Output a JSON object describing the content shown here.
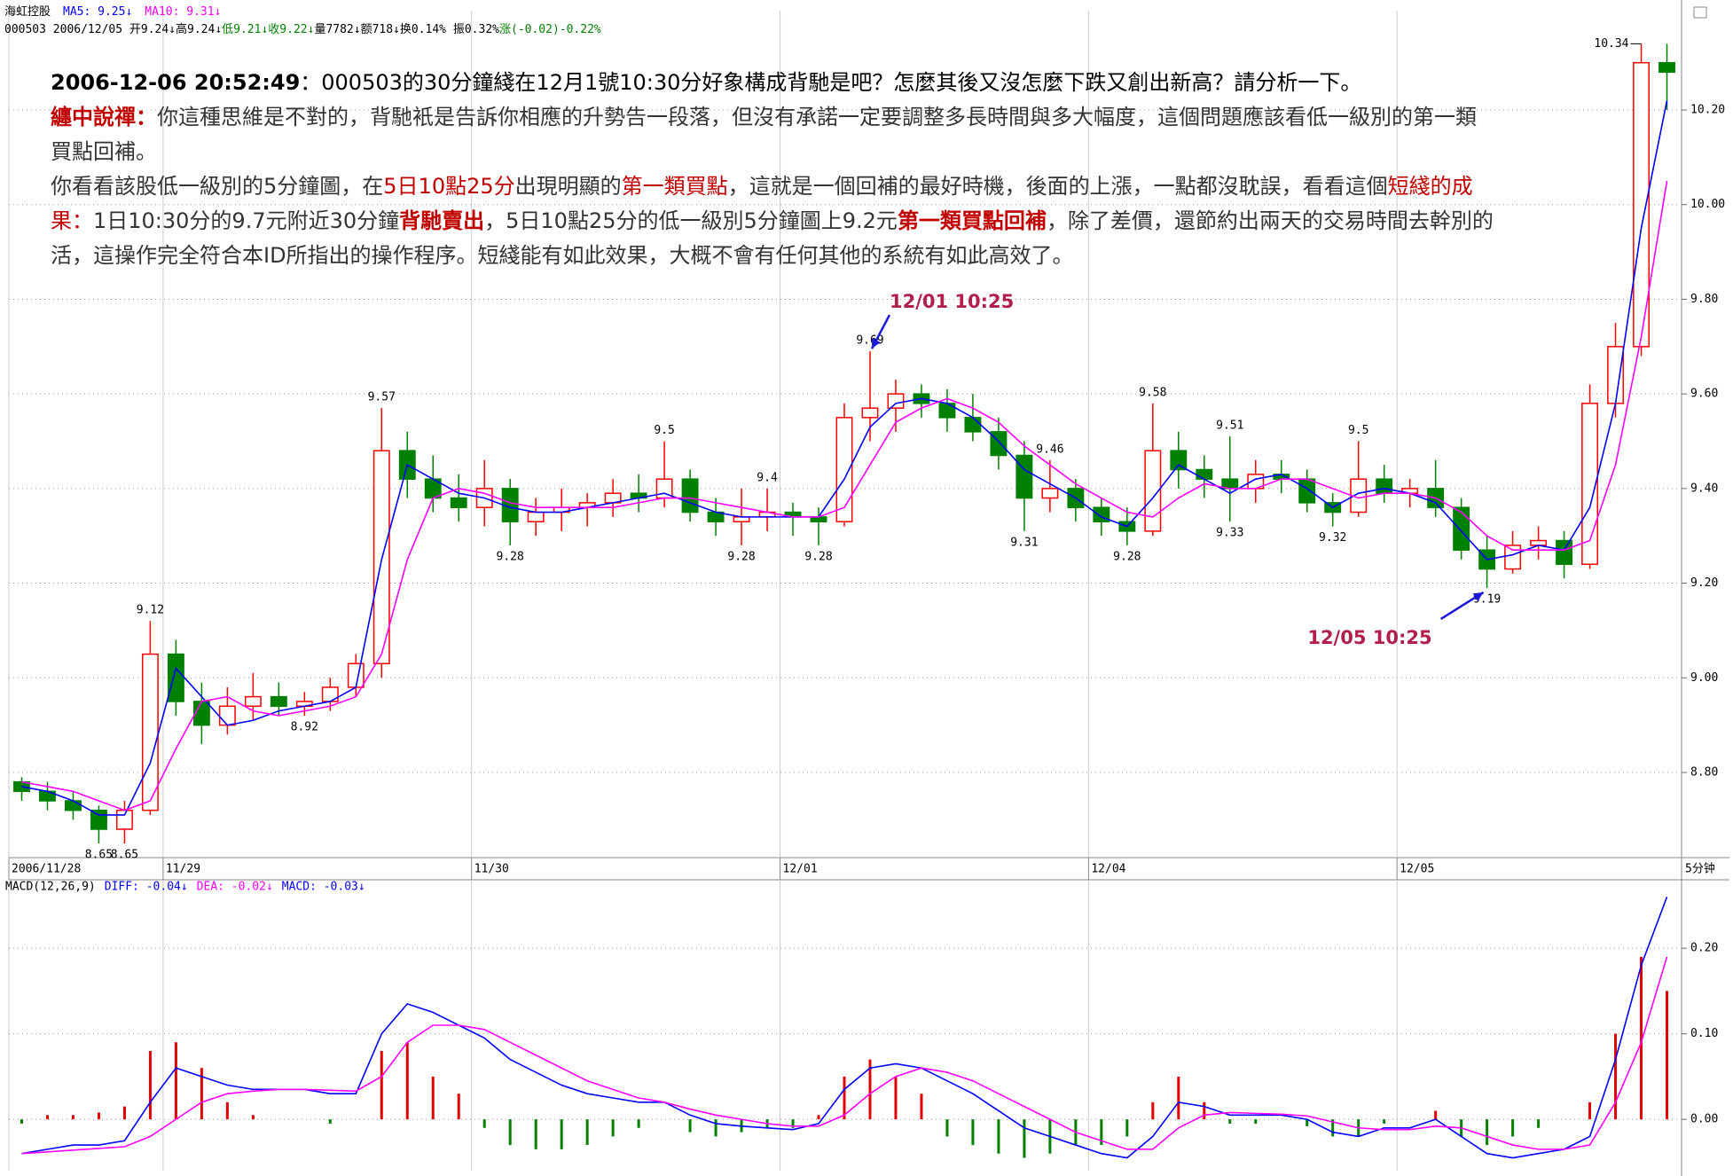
{
  "header": {
    "name": "海虹控股",
    "legend": [
      {
        "text": "MA5: 9.25↓",
        "color": "#0000ff"
      },
      {
        "text": "MA10: 9.31↓",
        "color": "#ff00ff"
      }
    ],
    "quote": [
      {
        "text": "000503 2006/12/05 开9.24↓高9.24↓",
        "color": "#000000"
      },
      {
        "text": "低9.21↓收9.22↓",
        "color": "#008000"
      },
      {
        "text": "量7782↓额718↓换0.14% 振0.32%",
        "color": "#000000"
      },
      {
        "text": "涨(-0.02)-0.22%",
        "color": "#008000"
      }
    ]
  },
  "article": {
    "paragraphs": [
      [
        {
          "text": "2006-12-06 20:52:49",
          "color": "#000000",
          "bold": true
        },
        {
          "text": "：000503的30分鐘綫在12月1號10:30分好象構成背馳是吧？怎麼其後又沒怎麼下跌又創出新高？請分析一下。",
          "color": "#000000",
          "bold": false
        }
      ],
      [
        {
          "text": "纏中說禪：",
          "color": "#c00000",
          "bold": true
        },
        {
          "text": "你這種思維是不對的，背馳衹是告訴你相應的升勢告一段落，但沒有承諾一定要調整多長時間與多大幅度，這個問題應該看低一級別的第一類買點回補。",
          "color": "#333333",
          "bold": false
        }
      ],
      [
        {
          "text": "你看看該股低一級別的5分鐘圖，在",
          "color": "#333333",
          "bold": false
        },
        {
          "text": "5日10點25分",
          "color": "#c00000",
          "bold": false
        },
        {
          "text": "出現明顯的",
          "color": "#333333",
          "bold": false
        },
        {
          "text": "第一類買點",
          "color": "#c00000",
          "bold": false
        },
        {
          "text": "，這就是一個回補的最好時機，後面的上漲，一點都沒耽誤，看看這個",
          "color": "#333333",
          "bold": false
        },
        {
          "text": "短綫的成果：",
          "color": "#c00000",
          "bold": false
        },
        {
          "text": "1日10:30分的9.7元附近30分鐘",
          "color": "#333333",
          "bold": false
        },
        {
          "text": "背馳賣出",
          "color": "#c00000",
          "bold": true
        },
        {
          "text": "，5日10點25分的低一級別5分鐘圖上9.2元",
          "color": "#333333",
          "bold": false
        },
        {
          "text": "第一類買點回補",
          "color": "#c00000",
          "bold": true
        },
        {
          "text": "，除了差價，還節約出兩天的交易時間去幹別的活，這操作完全符合本ID所指出的操作程序。短綫能有如此效果，大概不會有任何其他的系統有如此高效了。",
          "color": "#333333",
          "bold": false
        }
      ]
    ]
  },
  "chart_data": [
    {
      "type": "candlestick",
      "categories": [
        "2006/11/28",
        null,
        null,
        null,
        null,
        null,
        "11/29",
        null,
        null,
        null,
        null,
        null,
        null,
        null,
        null,
        null,
        null,
        null,
        "11/30",
        null,
        null,
        null,
        null,
        null,
        null,
        null,
        null,
        null,
        null,
        null,
        "12/01",
        null,
        null,
        null,
        null,
        null,
        null,
        null,
        null,
        null,
        null,
        null,
        "12/04",
        null,
        null,
        null,
        null,
        null,
        null,
        null,
        null,
        null,
        null,
        null,
        "12/05",
        null,
        null,
        null,
        null,
        null,
        null,
        null,
        null,
        null,
        null
      ],
      "x_unit": "5分钟",
      "candles": {
        "colors": {
          "up": "#ff0000",
          "down": "#008000"
        },
        "open": [
          8.78,
          8.76,
          8.74,
          8.72,
          8.68,
          8.72,
          9.05,
          8.95,
          8.9,
          8.94,
          8.96,
          8.94,
          8.95,
          8.98,
          9.03,
          9.48,
          9.42,
          9.38,
          9.36,
          9.4,
          9.33,
          9.35,
          9.36,
          9.37,
          9.39,
          9.38,
          9.42,
          9.35,
          9.33,
          9.34,
          9.35,
          9.34,
          9.33,
          9.55,
          9.57,
          9.6,
          9.58,
          9.55,
          9.52,
          9.47,
          9.38,
          9.4,
          9.36,
          9.33,
          9.31,
          9.48,
          9.44,
          9.42,
          9.4,
          9.43,
          9.42,
          9.37,
          9.35,
          9.42,
          9.39,
          9.4,
          9.36,
          9.27,
          9.23,
          9.28,
          9.29,
          9.24,
          9.58,
          9.7,
          10.3
        ],
        "high": [
          8.79,
          8.78,
          8.76,
          8.73,
          8.74,
          9.12,
          9.08,
          8.99,
          8.98,
          9.01,
          8.99,
          8.97,
          9.0,
          9.05,
          9.57,
          9.52,
          9.47,
          9.43,
          9.46,
          9.42,
          9.38,
          9.4,
          9.39,
          9.42,
          9.43,
          9.5,
          9.44,
          9.38,
          9.4,
          9.4,
          9.37,
          9.36,
          9.58,
          9.69,
          9.63,
          9.62,
          9.61,
          9.6,
          9.55,
          9.5,
          9.46,
          9.42,
          9.38,
          9.36,
          9.58,
          9.52,
          9.47,
          9.51,
          9.46,
          9.46,
          9.44,
          9.39,
          9.5,
          9.45,
          9.42,
          9.46,
          9.38,
          9.3,
          9.31,
          9.32,
          9.31,
          9.62,
          9.75,
          10.34,
          10.34
        ],
        "low": [
          8.74,
          8.72,
          8.7,
          8.65,
          8.65,
          8.71,
          8.92,
          8.86,
          8.88,
          8.91,
          8.92,
          8.92,
          8.93,
          8.96,
          9.0,
          9.38,
          9.35,
          9.33,
          9.32,
          9.28,
          9.3,
          9.31,
          9.32,
          9.34,
          9.35,
          9.36,
          9.33,
          9.3,
          9.28,
          9.31,
          9.3,
          9.28,
          9.32,
          9.5,
          9.52,
          9.55,
          9.52,
          9.5,
          9.44,
          9.31,
          9.35,
          9.33,
          9.3,
          9.28,
          9.3,
          9.4,
          9.38,
          9.33,
          9.37,
          9.39,
          9.35,
          9.32,
          9.34,
          9.37,
          9.36,
          9.34,
          9.25,
          9.19,
          9.22,
          9.25,
          9.21,
          9.23,
          9.55,
          9.68,
          10.2
        ],
        "close": [
          8.76,
          8.74,
          8.72,
          8.68,
          8.72,
          9.05,
          8.95,
          8.9,
          8.94,
          8.96,
          8.94,
          8.95,
          8.98,
          9.03,
          9.48,
          9.42,
          9.38,
          9.36,
          9.4,
          9.33,
          9.35,
          9.36,
          9.37,
          9.39,
          9.38,
          9.42,
          9.35,
          9.33,
          9.34,
          9.35,
          9.34,
          9.33,
          9.55,
          9.57,
          9.6,
          9.58,
          9.55,
          9.52,
          9.47,
          9.38,
          9.4,
          9.36,
          9.33,
          9.31,
          9.48,
          9.44,
          9.42,
          9.4,
          9.43,
          9.42,
          9.37,
          9.35,
          9.42,
          9.39,
          9.4,
          9.36,
          9.27,
          9.23,
          9.28,
          9.29,
          9.24,
          9.58,
          9.7,
          10.3,
          10.28
        ]
      },
      "lines": [
        {
          "color": "#0000ff",
          "values": [
            8.77,
            8.76,
            8.74,
            8.71,
            8.71,
            8.82,
            9.02,
            8.96,
            8.9,
            8.91,
            8.93,
            8.94,
            8.95,
            8.98,
            9.25,
            9.45,
            9.42,
            9.39,
            9.38,
            9.36,
            9.35,
            9.35,
            9.36,
            9.37,
            9.38,
            9.39,
            9.37,
            9.35,
            9.34,
            9.34,
            9.34,
            9.34,
            9.42,
            9.53,
            9.58,
            9.59,
            9.58,
            9.55,
            9.5,
            9.44,
            9.41,
            9.38,
            9.34,
            9.32,
            9.38,
            9.45,
            9.42,
            9.39,
            9.42,
            9.43,
            9.4,
            9.36,
            9.39,
            9.4,
            9.39,
            9.37,
            9.31,
            9.25,
            9.26,
            9.28,
            9.27,
            9.36,
            9.58,
            9.95,
            10.22
          ]
        },
        {
          "color": "#ff00ff",
          "values": [
            8.78,
            8.77,
            8.76,
            8.74,
            8.72,
            8.74,
            8.85,
            8.95,
            8.96,
            8.93,
            8.92,
            8.93,
            8.94,
            8.96,
            9.05,
            9.25,
            9.38,
            9.4,
            9.39,
            9.37,
            9.36,
            9.36,
            9.36,
            9.36,
            9.37,
            9.38,
            9.38,
            9.37,
            9.36,
            9.35,
            9.34,
            9.34,
            9.36,
            9.45,
            9.54,
            9.57,
            9.59,
            9.57,
            9.54,
            9.49,
            9.45,
            9.41,
            9.38,
            9.35,
            9.34,
            9.38,
            9.41,
            9.4,
            9.4,
            9.42,
            9.42,
            9.4,
            9.38,
            9.39,
            9.39,
            9.38,
            9.35,
            9.3,
            9.27,
            9.27,
            9.27,
            9.29,
            9.45,
            9.72,
            10.05
          ]
        }
      ],
      "ylim": [
        8.62,
        10.41
      ],
      "yticks": [
        {
          "value": 8.8,
          "label": "8.80"
        },
        {
          "value": 9,
          "label": "9.00"
        },
        {
          "value": 9.2,
          "label": "9.20"
        },
        {
          "value": 9.4,
          "label": "9.40"
        },
        {
          "value": 9.6,
          "label": "9.60"
        },
        {
          "value": 9.8,
          "label": "9.80"
        },
        {
          "value": 10,
          "label": "10.00"
        },
        {
          "value": 10.2,
          "label": "10.20"
        }
      ],
      "grid": true,
      "extremes": [
        {
          "index": 3,
          "value": 8.65,
          "position": "below"
        },
        {
          "index": 4,
          "value": 8.65,
          "position": "below"
        },
        {
          "index": 5,
          "value": 9.12,
          "position": "above"
        },
        {
          "index": 11,
          "value": 8.92,
          "position": "below"
        },
        {
          "index": 14,
          "value": 9.57,
          "position": "above"
        },
        {
          "index": 19,
          "value": 9.28,
          "position": "below"
        },
        {
          "index": 25,
          "value": 9.5,
          "position": "above"
        },
        {
          "index": 28,
          "value": 9.28,
          "position": "below"
        },
        {
          "index": 29,
          "value": 9.4,
          "position": "above"
        },
        {
          "index": 31,
          "value": 9.28,
          "position": "below"
        },
        {
          "index": 33,
          "value": 9.69,
          "position": "above"
        },
        {
          "index": 39,
          "value": 9.31,
          "position": "below"
        },
        {
          "index": 40,
          "value": 9.46,
          "position": "above"
        },
        {
          "index": 43,
          "value": 9.28,
          "position": "below"
        },
        {
          "index": 44,
          "value": 9.58,
          "position": "above"
        },
        {
          "index": 47,
          "value": 9.33,
          "position": "below"
        },
        {
          "index": 47,
          "value": 9.51,
          "position": "above"
        },
        {
          "index": 51,
          "value": 9.32,
          "position": "below"
        },
        {
          "index": 52,
          "value": 9.5,
          "position": "above"
        },
        {
          "index": 57,
          "value": 9.19,
          "position": "below"
        },
        {
          "index": 63,
          "value": 10.34,
          "position": "left"
        }
      ],
      "annotations": [
        {
          "text": "12/01 10:25",
          "index": 33,
          "anchor": "high",
          "color": "#b0204a"
        },
        {
          "text": "12/05 10:25",
          "index": 57,
          "anchor": "low",
          "color": "#b0204a"
        }
      ]
    },
    {
      "type": "macd",
      "legend": [
        {
          "text": "MACD(12,26,9)",
          "color": "#000000"
        },
        {
          "text": "DIFF: -0.04↓",
          "color": "#0000ff"
        },
        {
          "text": "DEA: -0.02↓",
          "color": "#ff00ff"
        },
        {
          "text": "MACD: -0.03↓",
          "color": "#0000ff"
        }
      ],
      "histogram": {
        "colors": {
          "up": "#e00000",
          "down": "#008000"
        },
        "values": [
          -0.005,
          0.005,
          0.005,
          0.008,
          0.015,
          0.08,
          0.09,
          0.06,
          0.02,
          0.005,
          0.0,
          0.0,
          -0.005,
          0.0,
          0.08,
          0.09,
          0.05,
          0.03,
          -0.01,
          -0.03,
          -0.035,
          -0.035,
          -0.03,
          -0.02,
          -0.01,
          0.0,
          -0.015,
          -0.02,
          -0.015,
          -0.01,
          -0.01,
          0.005,
          0.05,
          0.07,
          0.05,
          0.03,
          -0.02,
          -0.03,
          -0.04,
          -0.045,
          -0.04,
          -0.03,
          -0.03,
          -0.02,
          0.02,
          0.05,
          0.02,
          -0.005,
          -0.005,
          0.0,
          -0.008,
          -0.02,
          -0.02,
          -0.005,
          0.0,
          0.01,
          -0.02,
          -0.03,
          -0.02,
          -0.01,
          0.0,
          0.02,
          0.1,
          0.19,
          0.15
        ]
      },
      "lines": [
        {
          "color": "#0000ff",
          "values": [
            -0.04,
            -0.035,
            -0.03,
            -0.03,
            -0.025,
            0.02,
            0.06,
            0.05,
            0.04,
            0.035,
            0.035,
            0.035,
            0.03,
            0.03,
            0.1,
            0.135,
            0.125,
            0.11,
            0.095,
            0.07,
            0.055,
            0.04,
            0.03,
            0.025,
            0.02,
            0.02,
            0.005,
            -0.005,
            -0.008,
            -0.01,
            -0.012,
            -0.005,
            0.035,
            0.06,
            0.065,
            0.06,
            0.045,
            0.03,
            0.01,
            -0.01,
            -0.02,
            -0.03,
            -0.04,
            -0.045,
            -0.02,
            0.02,
            0.015,
            0.005,
            0.005,
            0.005,
            0.0,
            -0.015,
            -0.02,
            -0.01,
            -0.01,
            0.0,
            -0.02,
            -0.04,
            -0.045,
            -0.04,
            -0.035,
            -0.02,
            0.07,
            0.18,
            0.26
          ]
        },
        {
          "color": "#ff00ff",
          "values": [
            -0.04,
            -0.038,
            -0.036,
            -0.034,
            -0.032,
            -0.02,
            0.0,
            0.02,
            0.03,
            0.033,
            0.035,
            0.035,
            0.034,
            0.033,
            0.05,
            0.09,
            0.11,
            0.11,
            0.105,
            0.09,
            0.075,
            0.06,
            0.045,
            0.035,
            0.025,
            0.02,
            0.012,
            0.005,
            0.0,
            -0.005,
            -0.008,
            -0.008,
            0.005,
            0.03,
            0.05,
            0.06,
            0.055,
            0.045,
            0.03,
            0.015,
            0.0,
            -0.015,
            -0.025,
            -0.035,
            -0.035,
            -0.01,
            0.005,
            0.008,
            0.007,
            0.006,
            0.004,
            -0.003,
            -0.01,
            -0.012,
            -0.012,
            -0.008,
            -0.01,
            -0.02,
            -0.03,
            -0.035,
            -0.035,
            -0.03,
            0.02,
            0.09,
            0.19
          ]
        }
      ],
      "ylim": [
        -0.06,
        0.28
      ],
      "yticks": [
        {
          "value": 0,
          "label": "0.00"
        },
        {
          "value": 0.1,
          "label": "0.10"
        },
        {
          "value": 0.2,
          "label": "0.20"
        }
      ],
      "grid": true
    }
  ]
}
